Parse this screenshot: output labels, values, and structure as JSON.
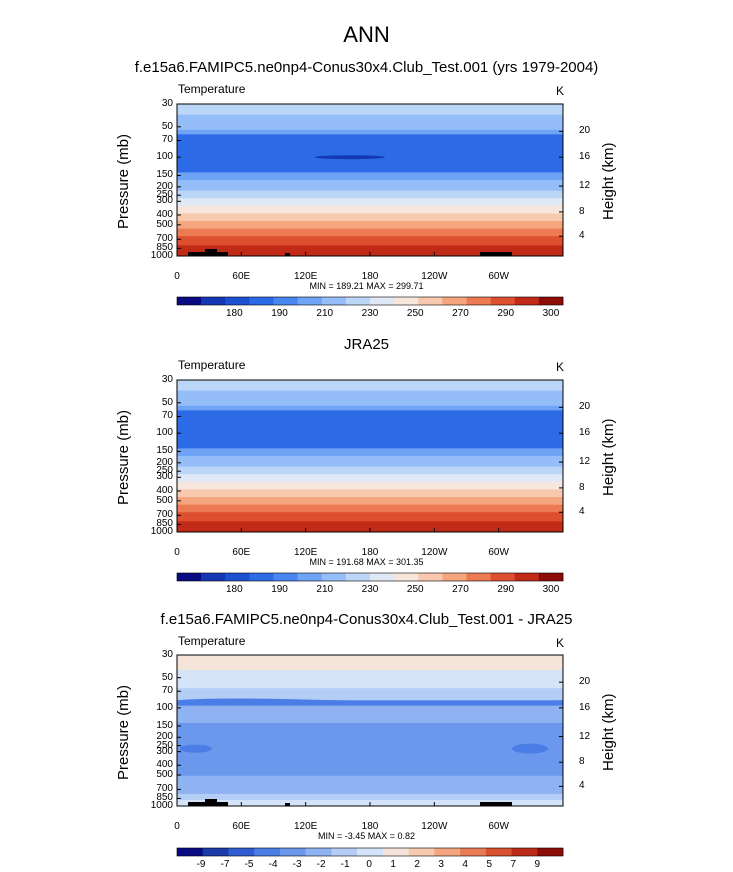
{
  "page_title": "ANN",
  "panels": [
    {
      "title": "f.e15a6.FAMIPC5.ne0np4-Conus30x4.Club_Test.001 (yrs 1979-2004)",
      "var_label": "Temperature",
      "unit": "K",
      "ylabel": "Pressure (mb)",
      "ylabel_right": "Height (km)",
      "minmax": "MIN = 189.21  MAX = 299.71"
    },
    {
      "title": "JRA25",
      "var_label": "Temperature",
      "unit": "K",
      "ylabel": "Pressure (mb)",
      "ylabel_right": "Height (km)",
      "minmax": "MIN = 191.68  MAX = 301.35"
    },
    {
      "title": "f.e15a6.FAMIPC5.ne0np4-Conus30x4.Club_Test.001 - JRA25",
      "var_label": "Temperature",
      "unit": "K",
      "ylabel": "Pressure (mb)",
      "ylabel_right": "Height (km)",
      "minmax": "MIN = -3.45  MAX =  0.82"
    }
  ],
  "chart_data": [
    {
      "type": "heatmap",
      "title": "f.e15a6.FAMIPC5.ne0np4-Conus30x4.Club_Test.001 (yrs 1979-2004)",
      "xlabel": "",
      "ylabel": "Pressure (mb)",
      "ylabel_right": "Height (km)",
      "x_ticks": [
        "0",
        "60E",
        "120E",
        "180",
        "120W",
        "60W"
      ],
      "y_ticks": [
        "30",
        "50",
        "70",
        "100",
        "150",
        "200",
        "250",
        "300",
        "400",
        "500",
        "700",
        "850",
        "1000"
      ],
      "y_right_ticks": [
        "20",
        "16",
        "12",
        "8",
        "4"
      ],
      "colorbar_labels": [
        "180",
        "190",
        "210",
        "230",
        "250",
        "270",
        "290",
        "300"
      ],
      "min": 189.21,
      "max": 299.71
    },
    {
      "type": "heatmap",
      "title": "JRA25",
      "xlabel": "",
      "ylabel": "Pressure (mb)",
      "ylabel_right": "Height (km)",
      "x_ticks": [
        "0",
        "60E",
        "120E",
        "180",
        "120W",
        "60W"
      ],
      "y_ticks": [
        "30",
        "50",
        "70",
        "100",
        "150",
        "200",
        "250",
        "300",
        "400",
        "500",
        "700",
        "850",
        "1000"
      ],
      "y_right_ticks": [
        "20",
        "16",
        "12",
        "8",
        "4"
      ],
      "colorbar_labels": [
        "180",
        "190",
        "210",
        "230",
        "250",
        "270",
        "290",
        "300"
      ],
      "min": 191.68,
      "max": 301.35
    },
    {
      "type": "heatmap",
      "title": "f.e15a6.FAMIPC5.ne0np4-Conus30x4.Club_Test.001 - JRA25",
      "xlabel": "",
      "ylabel": "Pressure (mb)",
      "ylabel_right": "Height (km)",
      "x_ticks": [
        "0",
        "60E",
        "120E",
        "180",
        "120W",
        "60W"
      ],
      "y_ticks": [
        "30",
        "50",
        "70",
        "100",
        "150",
        "200",
        "250",
        "300",
        "400",
        "500",
        "700",
        "850",
        "1000"
      ],
      "y_right_ticks": [
        "20",
        "16",
        "12",
        "8",
        "4"
      ],
      "colorbar_labels": [
        "-9",
        "-7",
        "-5",
        "-4",
        "-3",
        "-2",
        "-1",
        "0",
        "1",
        "2",
        "3",
        "4",
        "5",
        "7",
        "9"
      ],
      "min": -3.45,
      "max": 0.82
    }
  ],
  "colors": {
    "abs_palette": [
      "#0a0a82",
      "#1438b4",
      "#1e50d2",
      "#2d6ae6",
      "#4a86f0",
      "#6ea3f5",
      "#95bdf7",
      "#bcd6f8",
      "#dfe9f6",
      "#f7e6dc",
      "#f8c9ae",
      "#f5a67f",
      "#ec7a52",
      "#dd4f2e",
      "#c12a17",
      "#8c0d08"
    ],
    "diff_palette": [
      "#0a0a82",
      "#1a3aa8",
      "#2f5cd0",
      "#4a7de6",
      "#6b98ec",
      "#8fb3f2",
      "#b3cdf5",
      "#d4e3f7",
      "#f4e4da",
      "#f7c9ae",
      "#f3a580",
      "#ea7c55",
      "#d9522f",
      "#bb2c18",
      "#8c0d08"
    ]
  }
}
